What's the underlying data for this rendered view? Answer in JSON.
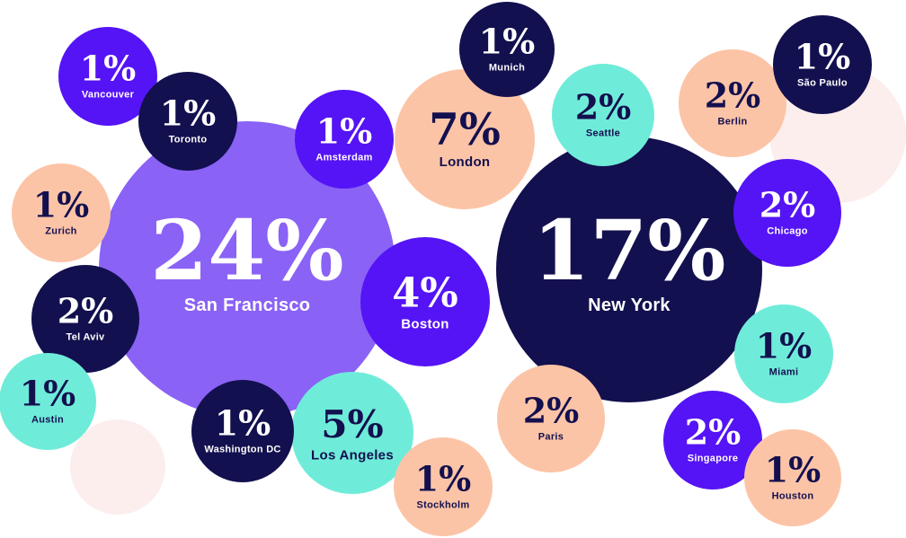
{
  "chart_data": {
    "type": "bubble",
    "unit": "%",
    "colors": {
      "navy": "#13104f",
      "violet": "#5514f5",
      "lavender": "#8a62f5",
      "teal": "#6fecd9",
      "peach": "#fcc4a6",
      "pale_pink": "#fdeeee"
    },
    "bubbles": [
      {
        "city": "San Francisco",
        "value": 24,
        "label": "24%",
        "color": "lavender"
      },
      {
        "city": "New York",
        "value": 17,
        "label": "17%",
        "color": "navy"
      },
      {
        "city": "London",
        "value": 7,
        "label": "7%",
        "color": "peach"
      },
      {
        "city": "Los Angeles",
        "value": 5,
        "label": "5%",
        "color": "teal"
      },
      {
        "city": "Boston",
        "value": 4,
        "label": "4%",
        "color": "violet"
      },
      {
        "city": "Tel Aviv",
        "value": 2,
        "label": "2%",
        "color": "navy"
      },
      {
        "city": "Seattle",
        "value": 2,
        "label": "2%",
        "color": "teal"
      },
      {
        "city": "Berlin",
        "value": 2,
        "label": "2%",
        "color": "peach"
      },
      {
        "city": "Chicago",
        "value": 2,
        "label": "2%",
        "color": "violet"
      },
      {
        "city": "Paris",
        "value": 2,
        "label": "2%",
        "color": "peach"
      },
      {
        "city": "Singapore",
        "value": 2,
        "label": "2%",
        "color": "violet"
      },
      {
        "city": "Vancouver",
        "value": 1,
        "label": "1%",
        "color": "violet"
      },
      {
        "city": "Toronto",
        "value": 1,
        "label": "1%",
        "color": "navy"
      },
      {
        "city": "Amsterdam",
        "value": 1,
        "label": "1%",
        "color": "violet"
      },
      {
        "city": "Munich",
        "value": 1,
        "label": "1%",
        "color": "navy"
      },
      {
        "city": "São Paulo",
        "value": 1,
        "label": "1%",
        "color": "navy"
      },
      {
        "city": "Zurich",
        "value": 1,
        "label": "1%",
        "color": "peach"
      },
      {
        "city": "Austin",
        "value": 1,
        "label": "1%",
        "color": "teal"
      },
      {
        "city": "Washington DC",
        "value": 1,
        "label": "1%",
        "color": "navy"
      },
      {
        "city": "Stockholm",
        "value": 1,
        "label": "1%",
        "color": "peach"
      },
      {
        "city": "Miami",
        "value": 1,
        "label": "1%",
        "color": "teal"
      },
      {
        "city": "Houston",
        "value": 1,
        "label": "1%",
        "color": "peach"
      }
    ]
  }
}
